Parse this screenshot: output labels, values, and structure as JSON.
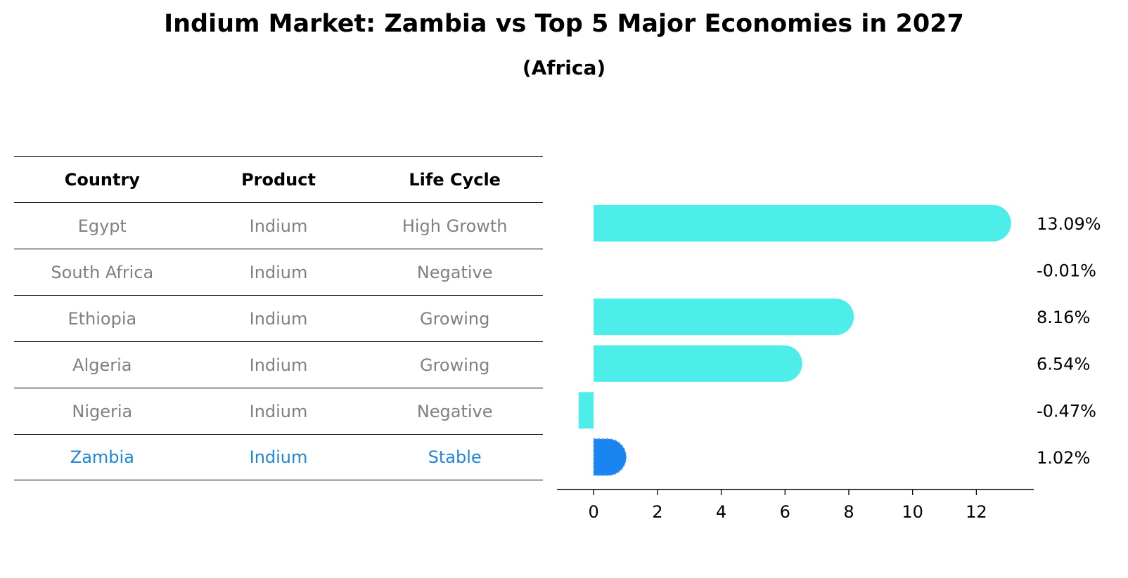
{
  "header": {
    "title": "Indium Market: Zambia vs Top 5 Major Economies in 2027",
    "subtitle": "(Africa)"
  },
  "table": {
    "columns": [
      "Country",
      "Product",
      "Life Cycle"
    ],
    "rows": [
      [
        "Egypt",
        "Indium",
        "High Growth"
      ],
      [
        "South Africa",
        "Indium",
        "Negative"
      ],
      [
        "Ethiopia",
        "Indium",
        "Growing"
      ],
      [
        "Algeria",
        "Indium",
        "Growing"
      ],
      [
        "Nigeria",
        "Indium",
        "Negative"
      ],
      [
        "Zambia",
        "Indium",
        "Stable"
      ]
    ]
  },
  "chart_data": {
    "type": "bar",
    "orientation": "horizontal",
    "categories": [
      "Egypt",
      "South Africa",
      "Ethiopia",
      "Algeria",
      "Nigeria",
      "Zambia"
    ],
    "values": [
      13.09,
      -0.01,
      8.16,
      6.54,
      -0.47,
      1.02
    ],
    "value_labels": [
      "13.09%",
      "-0.01%",
      "8.16%",
      "6.54%",
      "-0.47%",
      "1.02%"
    ],
    "highlight": "Zambia",
    "xticks": [
      0,
      2,
      4,
      6,
      8,
      10,
      12
    ],
    "xlim": [
      -1.15,
      13.8
    ],
    "colors": {
      "default": "#4deeea",
      "highlight": "#1a85f0"
    },
    "grid": false,
    "title": "",
    "xlabel": "",
    "ylabel": ""
  }
}
